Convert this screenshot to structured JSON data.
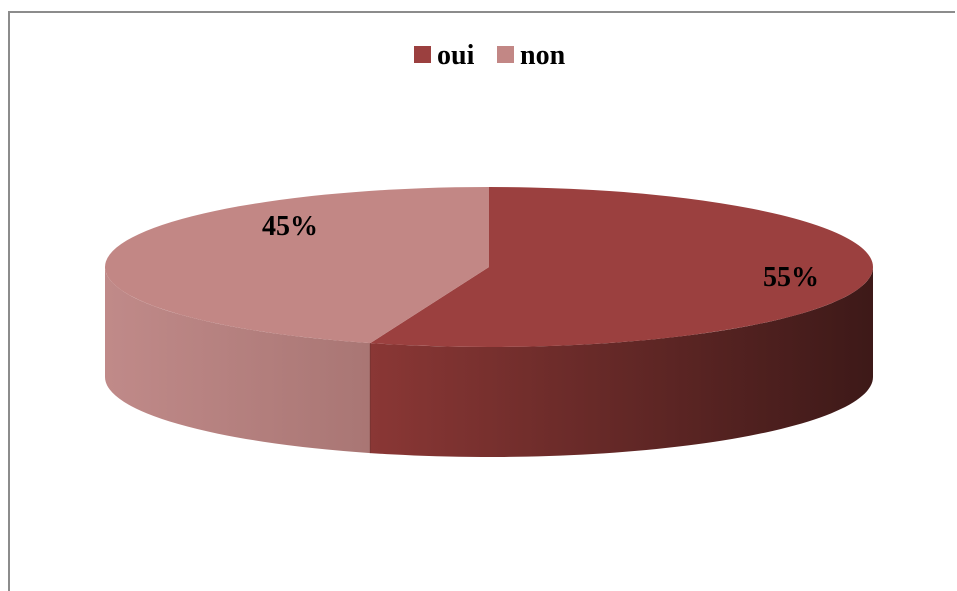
{
  "chart_data": {
    "type": "pie",
    "three_d": true,
    "title": "",
    "categories": [
      "oui",
      "non"
    ],
    "values": [
      55,
      45
    ],
    "data_labels": [
      "55%",
      "45%"
    ],
    "colors": [
      "#9b403f",
      "#c28785"
    ],
    "legend": {
      "position": "top",
      "entries": [
        {
          "label": "oui",
          "color": "#9b403f"
        },
        {
          "label": "non",
          "color": "#c28785"
        }
      ]
    }
  }
}
